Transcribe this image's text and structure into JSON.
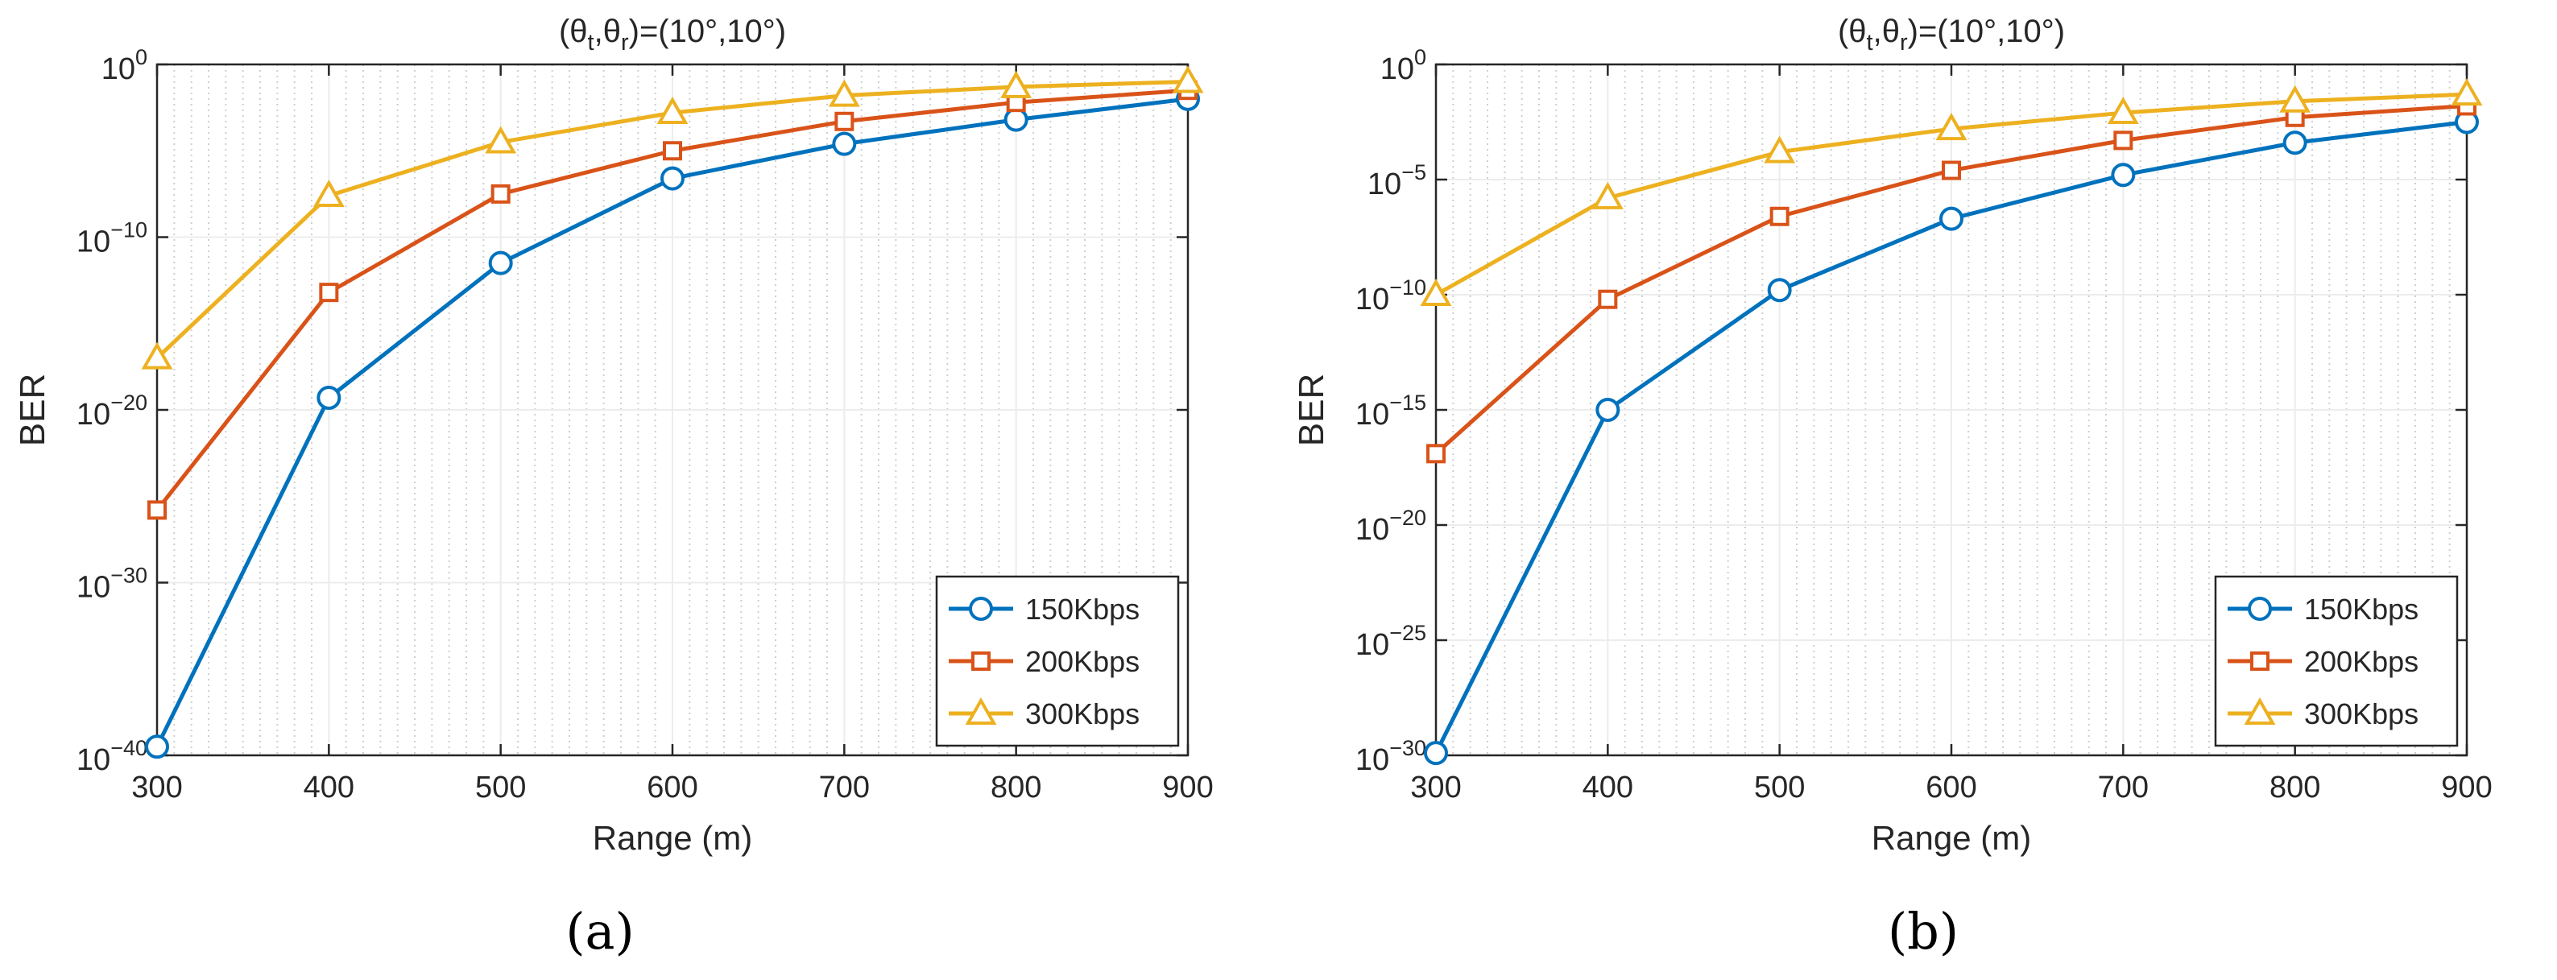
{
  "colors": {
    "s150": "#0072BD",
    "s200": "#D95319",
    "s300": "#EDB120",
    "grid_minor": "#cfcfcf",
    "grid_major": "#ececec",
    "axis": "#262626",
    "background": "#ffffff"
  },
  "chart_data": [
    {
      "type": "line",
      "panel_label": "(a)",
      "title_parts": {
        "open": "(θ",
        "sub1": "t",
        "comma": ",θ",
        "sub2": "r",
        "close": ")=(10°,10°)"
      },
      "xlabel": "Range (m)",
      "ylabel": "BER",
      "yscale": "log",
      "xlim": [
        300,
        900
      ],
      "ylim_exp": [
        -40,
        0
      ],
      "x_ticks": [
        300,
        400,
        500,
        600,
        700,
        800,
        900
      ],
      "x_tick_labels": [
        "300",
        "400",
        "500",
        "600",
        "700",
        "800",
        "900"
      ],
      "y_ticks_exp": [
        -40,
        -30,
        -20,
        -10,
        0
      ],
      "y_tick_labels": [
        "−40",
        "−30",
        "−20",
        "−10",
        "0"
      ],
      "y_tick_base": "10",
      "grid": true,
      "legend_position": "bottom-right",
      "x": [
        300,
        400,
        500,
        600,
        700,
        800,
        900
      ],
      "series": [
        {
          "name": "150Kbps",
          "marker": "circle",
          "color_key": "s150",
          "log10_values": [
            -39.5,
            -19.3,
            -11.5,
            -6.6,
            -4.6,
            -3.2,
            -2.0
          ]
        },
        {
          "name": "200Kbps",
          "marker": "square",
          "color_key": "s200",
          "log10_values": [
            -25.8,
            -13.2,
            -7.5,
            -5.0,
            -3.3,
            -2.2,
            -1.5
          ]
        },
        {
          "name": "300Kbps",
          "marker": "triangle",
          "color_key": "s300",
          "log10_values": [
            -17.0,
            -7.6,
            -4.5,
            -2.8,
            -1.8,
            -1.3,
            -1.0
          ]
        }
      ]
    },
    {
      "type": "line",
      "panel_label": "(b)",
      "title_parts": {
        "open": "(θ",
        "sub1": "t",
        "comma": ",θ",
        "sub2": "r",
        "close": ")=(10°,10°)"
      },
      "xlabel": "Range (m)",
      "ylabel": "BER",
      "yscale": "log",
      "xlim": [
        300,
        900
      ],
      "ylim_exp": [
        -30,
        0
      ],
      "x_ticks": [
        300,
        400,
        500,
        600,
        700,
        800,
        900
      ],
      "x_tick_labels": [
        "300",
        "400",
        "500",
        "600",
        "700",
        "800",
        "900"
      ],
      "y_ticks_exp": [
        -30,
        -25,
        -20,
        -15,
        -10,
        -5,
        0
      ],
      "y_tick_labels": [
        "−30",
        "−25",
        "−20",
        "−15",
        "−10",
        "−5",
        "0"
      ],
      "y_tick_base": "10",
      "grid": true,
      "legend_position": "bottom-right",
      "x": [
        300,
        400,
        500,
        600,
        700,
        800,
        900
      ],
      "series": [
        {
          "name": "150Kbps",
          "marker": "circle",
          "color_key": "s150",
          "log10_values": [
            -29.9,
            -15.0,
            -9.8,
            -6.7,
            -4.8,
            -3.4,
            -2.5
          ]
        },
        {
          "name": "200Kbps",
          "marker": "square",
          "color_key": "s200",
          "log10_values": [
            -16.9,
            -10.2,
            -6.6,
            -4.6,
            -3.3,
            -2.3,
            -1.8
          ]
        },
        {
          "name": "300Kbps",
          "marker": "triangle",
          "color_key": "s300",
          "log10_values": [
            -10.0,
            -5.8,
            -3.8,
            -2.8,
            -2.1,
            -1.6,
            -1.3
          ]
        }
      ]
    }
  ]
}
